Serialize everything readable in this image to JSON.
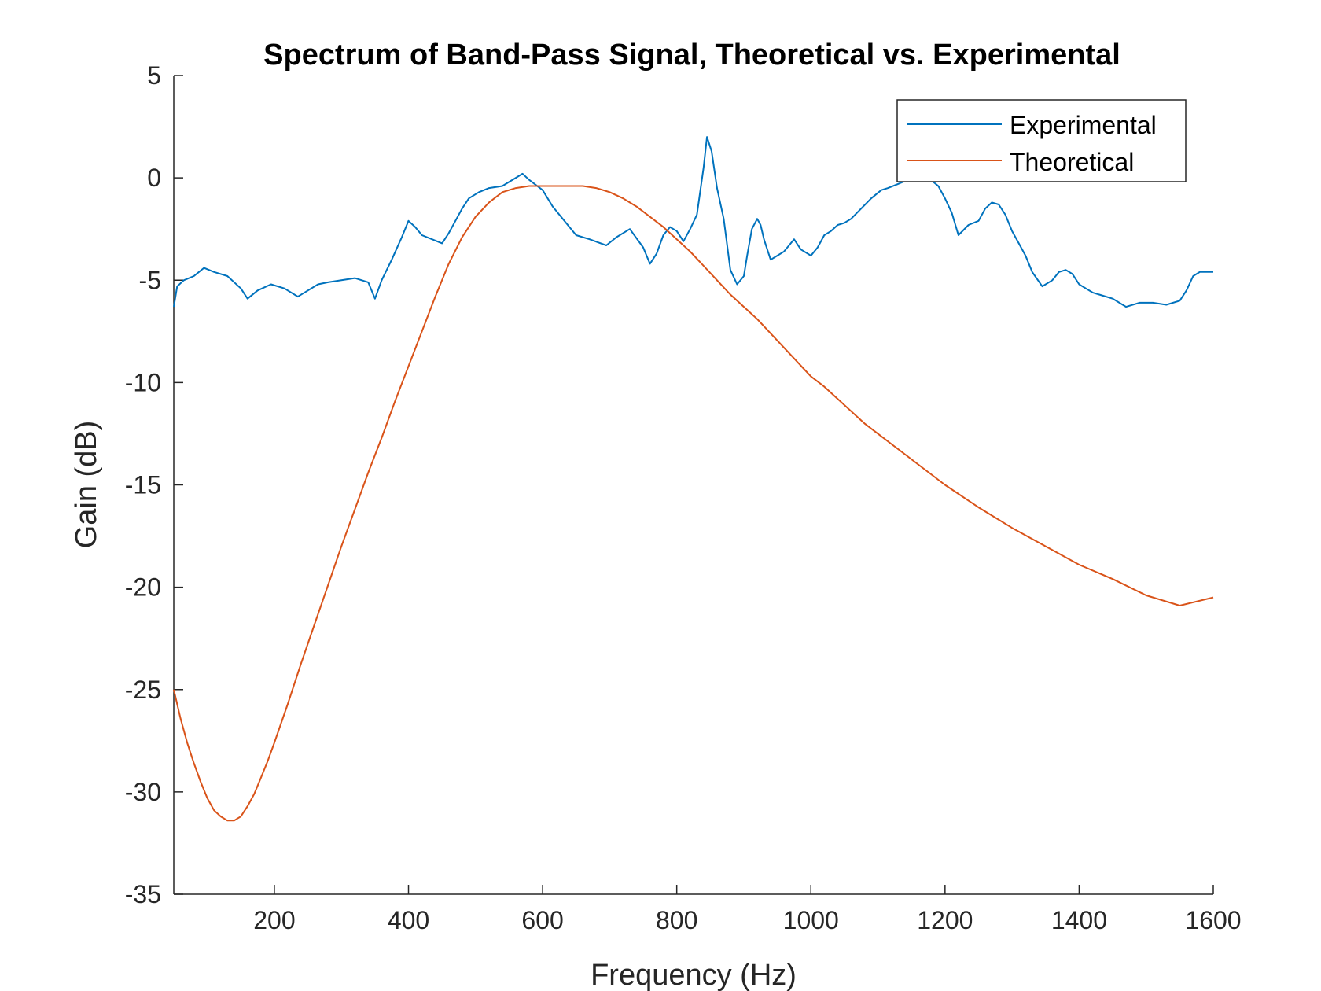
{
  "chart_data": {
    "type": "line",
    "title": "Spectrum of Band-Pass Signal, Theoretical vs. Experimental",
    "xlabel": "Frequency (Hz)",
    "ylabel": "Gain (dB)",
    "xlim": [
      50,
      1600
    ],
    "ylim": [
      -35,
      5
    ],
    "xticks": [
      200,
      400,
      600,
      800,
      1000,
      1200,
      1400,
      1600
    ],
    "yticks": [
      5,
      0,
      -5,
      -10,
      -15,
      -20,
      -25,
      -30,
      -35
    ],
    "grid": false,
    "legend": {
      "placement": "top-right",
      "entries": [
        "Experimental",
        "Theoretical"
      ]
    },
    "series": [
      {
        "name": "Experimental",
        "color": "#0072BD",
        "x": [
          50,
          55,
          65,
          80,
          95,
          110,
          130,
          150,
          160,
          175,
          195,
          215,
          235,
          250,
          265,
          280,
          300,
          320,
          340,
          350,
          360,
          375,
          390,
          400,
          410,
          420,
          435,
          450,
          460,
          470,
          480,
          490,
          505,
          520,
          540,
          560,
          570,
          580,
          600,
          615,
          630,
          650,
          670,
          695,
          710,
          730,
          750,
          760,
          770,
          780,
          790,
          800,
          810,
          820,
          830,
          840,
          845,
          852,
          860,
          870,
          880,
          890,
          900,
          905,
          912,
          920,
          925,
          930,
          935,
          940,
          950,
          960,
          975,
          985,
          1000,
          1010,
          1020,
          1030,
          1040,
          1050,
          1060,
          1075,
          1090,
          1105,
          1115,
          1130,
          1145,
          1160,
          1175,
          1190,
          1200,
          1210,
          1220,
          1235,
          1250,
          1260,
          1270,
          1280,
          1290,
          1300,
          1310,
          1320,
          1330,
          1345,
          1360,
          1370,
          1380,
          1390,
          1400,
          1410,
          1420,
          1430,
          1450,
          1470,
          1490,
          1510,
          1530,
          1550,
          1560,
          1570,
          1580,
          1590,
          1600
        ],
        "y": [
          -6.3,
          -5.3,
          -5.0,
          -4.8,
          -4.4,
          -4.6,
          -4.8,
          -5.4,
          -5.9,
          -5.5,
          -5.2,
          -5.4,
          -5.8,
          -5.5,
          -5.2,
          -5.1,
          -5.0,
          -4.9,
          -5.1,
          -5.9,
          -5.0,
          -4.0,
          -2.9,
          -2.1,
          -2.4,
          -2.8,
          -3.0,
          -3.2,
          -2.7,
          -2.1,
          -1.5,
          -1.0,
          -0.7,
          -0.5,
          -0.4,
          0.0,
          0.2,
          -0.1,
          -0.6,
          -1.4,
          -2.0,
          -2.8,
          -3.0,
          -3.3,
          -2.9,
          -2.5,
          -3.4,
          -4.2,
          -3.7,
          -2.8,
          -2.4,
          -2.6,
          -3.1,
          -2.5,
          -1.8,
          0.5,
          2.0,
          1.3,
          -0.5,
          -2.0,
          -4.5,
          -5.2,
          -4.8,
          -3.8,
          -2.5,
          -2.0,
          -2.3,
          -3.0,
          -3.5,
          -4.0,
          -3.8,
          -3.6,
          -3.0,
          -3.5,
          -3.8,
          -3.4,
          -2.8,
          -2.6,
          -2.3,
          -2.2,
          -2.0,
          -1.5,
          -1.0,
          -0.6,
          -0.5,
          -0.3,
          -0.1,
          0.1,
          0.0,
          -0.4,
          -1.0,
          -1.7,
          -2.8,
          -2.3,
          -2.1,
          -1.5,
          -1.2,
          -1.3,
          -1.8,
          -2.6,
          -3.2,
          -3.8,
          -4.6,
          -5.3,
          -5.0,
          -4.6,
          -4.5,
          -4.7,
          -5.2,
          -5.4,
          -5.6,
          -5.7,
          -5.9,
          -6.3,
          -6.1,
          -6.1,
          -6.2,
          -6.0,
          -5.5,
          -4.8,
          -4.6,
          -4.6,
          -4.6
        ],
        "x_": []
      },
      {
        "name": "Theoretical",
        "color": "#D95319",
        "x": [
          50,
          60,
          70,
          80,
          90,
          100,
          110,
          120,
          130,
          135,
          140,
          145,
          150,
          160,
          170,
          180,
          190,
          200,
          220,
          240,
          260,
          280,
          300,
          320,
          340,
          360,
          380,
          400,
          420,
          440,
          460,
          480,
          500,
          520,
          540,
          560,
          580,
          600,
          620,
          640,
          660,
          680,
          700,
          720,
          740,
          760,
          780,
          800,
          820,
          840,
          860,
          880,
          900,
          920,
          940,
          960,
          980,
          1000,
          1020,
          1040,
          1060,
          1080,
          1100,
          1120,
          1140,
          1160,
          1180,
          1200,
          1250,
          1300,
          1350,
          1400,
          1450,
          1500,
          1550,
          1600
        ],
        "y": [
          -25.0,
          -26.4,
          -27.6,
          -28.6,
          -29.5,
          -30.3,
          -30.9,
          -31.2,
          -31.4,
          -31.4,
          -31.4,
          -31.3,
          -31.2,
          -30.7,
          -30.1,
          -29.3,
          -28.5,
          -27.6,
          -25.7,
          -23.7,
          -21.8,
          -19.9,
          -18.0,
          -16.2,
          -14.4,
          -12.7,
          -10.9,
          -9.2,
          -7.5,
          -5.8,
          -4.2,
          -2.9,
          -1.9,
          -1.2,
          -0.7,
          -0.5,
          -0.4,
          -0.4,
          -0.4,
          -0.4,
          -0.4,
          -0.5,
          -0.7,
          -1.0,
          -1.4,
          -1.9,
          -2.4,
          -3.0,
          -3.6,
          -4.3,
          -5.0,
          -5.7,
          -6.3,
          -6.9,
          -7.6,
          -8.3,
          -9.0,
          -9.7,
          -10.2,
          -10.8,
          -11.4,
          -12.0,
          -12.5,
          -13.0,
          -13.5,
          -14.0,
          -14.5,
          -15.0,
          -16.1,
          -17.1,
          -18.0,
          -18.9,
          -19.6,
          -20.4,
          -20.9,
          -20.5
        ]
      }
    ]
  }
}
